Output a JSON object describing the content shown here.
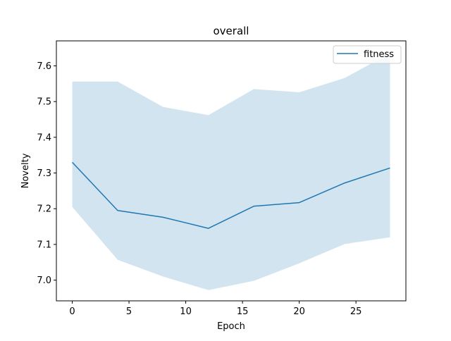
{
  "chart_data": {
    "type": "line",
    "title": "overall",
    "xlabel": "Epoch",
    "ylabel": "Novelty",
    "x": [
      0,
      4,
      8,
      12,
      16,
      20,
      24,
      28
    ],
    "series": [
      {
        "name": "fitness",
        "values": [
          7.33,
          7.195,
          7.176,
          7.145,
          7.207,
          7.217,
          7.272,
          7.314
        ],
        "band_upper": [
          7.556,
          7.556,
          7.485,
          7.462,
          7.535,
          7.526,
          7.566,
          7.635
        ],
        "band_lower": [
          7.205,
          7.057,
          7.01,
          6.972,
          6.998,
          7.047,
          7.101,
          7.12
        ],
        "color": "#1f77b4",
        "band_color": "#1f77b4"
      }
    ],
    "xlim": [
      -1.4,
      29.4
    ],
    "ylim": [
      6.942,
      7.67
    ],
    "xticks": [
      "0",
      "5",
      "10",
      "15",
      "20",
      "25"
    ],
    "yticks": [
      "7.0",
      "7.1",
      "7.2",
      "7.3",
      "7.4",
      "7.5",
      "7.6"
    ],
    "grid": false,
    "legend_position": "upper right"
  }
}
